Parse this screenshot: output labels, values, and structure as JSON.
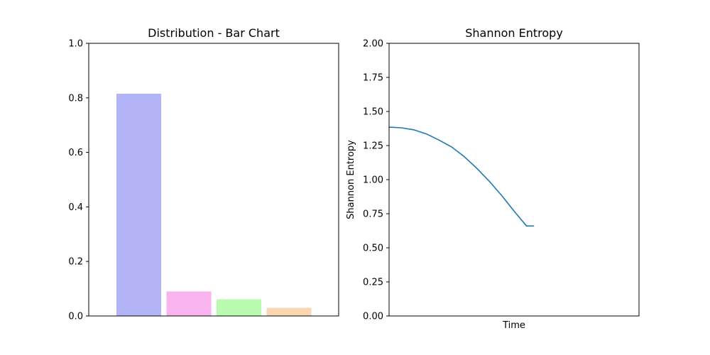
{
  "chart_data": [
    {
      "type": "bar",
      "title": "Distribution - Bar Chart",
      "xlabel": "",
      "ylabel": "",
      "categories": [
        "",
        "",
        "",
        ""
      ],
      "values": [
        0.815,
        0.09,
        0.061,
        0.03
      ],
      "colors": [
        "#b3b3f8",
        "#f9b3ee",
        "#bbfbb0",
        "#fbd7b1"
      ],
      "ylim": [
        0,
        1.0
      ],
      "yticks": [
        "0.0",
        "0.2",
        "0.4",
        "0.6",
        "0.8",
        "1.0"
      ],
      "grid": false,
      "legend": "none"
    },
    {
      "type": "line",
      "title": "Shannon Entropy",
      "xlabel": "Time",
      "ylabel": "Shannon Entropy",
      "xlim": [
        0,
        100
      ],
      "ylim": [
        0,
        2.0
      ],
      "yticks": [
        "0.00",
        "0.25",
        "0.50",
        "0.75",
        "1.00",
        "1.25",
        "1.50",
        "1.75",
        "2.00"
      ],
      "line_color": "#1f77b4",
      "series": [
        {
          "x": [
            0,
            5,
            10,
            15,
            20,
            25,
            30,
            35,
            40,
            45,
            50,
            55,
            58
          ],
          "y": [
            1.385,
            1.38,
            1.365,
            1.335,
            1.29,
            1.24,
            1.17,
            1.085,
            0.99,
            0.885,
            0.77,
            0.66,
            0.66
          ]
        }
      ],
      "grid": false,
      "legend": "none"
    }
  ]
}
